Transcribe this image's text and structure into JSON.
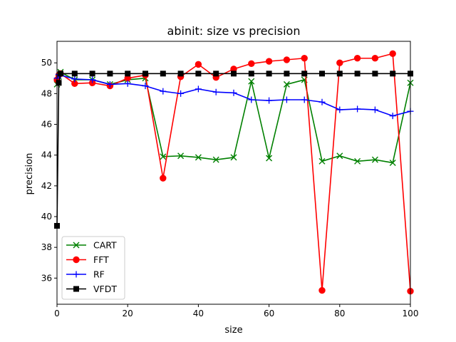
{
  "chart_data": {
    "type": "line",
    "title": "abinit: size vs precision",
    "xlabel": "size",
    "ylabel": "precision",
    "xlim": [
      0,
      100
    ],
    "ylim": [
      34.3,
      51.4
    ],
    "xticks": [
      0,
      20,
      40,
      60,
      80,
      100
    ],
    "yticks": [
      36,
      38,
      40,
      42,
      44,
      46,
      48,
      50
    ],
    "grid": false,
    "legend_position": "lower-left",
    "series": [
      {
        "name": "CART",
        "color": "#008000",
        "marker": "x",
        "x": [
          0,
          0.5,
          1,
          5,
          10,
          15,
          20,
          25,
          30,
          35,
          40,
          45,
          50,
          55,
          60,
          65,
          70,
          75,
          80,
          85,
          90,
          95,
          100
        ],
        "y": [
          48.6,
          49.1,
          49.4,
          48.9,
          48.9,
          48.6,
          48.9,
          49.0,
          43.9,
          43.95,
          43.85,
          43.7,
          43.85,
          48.8,
          43.8,
          48.6,
          48.9,
          43.6,
          43.95,
          43.6,
          43.7,
          43.5,
          48.7
        ]
      },
      {
        "name": "FFT",
        "color": "#ff0000",
        "marker": "o",
        "x": [
          0,
          0.5,
          1,
          5,
          10,
          15,
          20,
          25,
          30,
          35,
          40,
          45,
          50,
          55,
          60,
          65,
          70,
          75,
          80,
          85,
          90,
          95,
          100
        ],
        "y": [
          48.9,
          49.2,
          49.3,
          48.65,
          48.7,
          48.5,
          49.0,
          49.2,
          42.5,
          49.1,
          49.9,
          49.05,
          49.6,
          49.95,
          50.1,
          50.2,
          50.3,
          35.2,
          50.0,
          50.3,
          50.3,
          50.6,
          35.15
        ]
      },
      {
        "name": "RF",
        "color": "#0000ff",
        "marker": "+",
        "x": [
          0,
          0.5,
          1,
          5,
          10,
          15,
          20,
          25,
          30,
          35,
          40,
          45,
          50,
          55,
          60,
          65,
          70,
          75,
          80,
          85,
          90,
          95,
          100
        ],
        "y": [
          49.0,
          49.25,
          49.2,
          48.95,
          48.9,
          48.6,
          48.65,
          48.5,
          48.15,
          48.0,
          48.3,
          48.1,
          48.05,
          47.6,
          47.55,
          47.6,
          47.6,
          47.45,
          46.95,
          47.0,
          46.95,
          46.55,
          46.85
        ]
      },
      {
        "name": "VFDT",
        "color": "#000000",
        "marker": "s",
        "x": [
          0,
          0.5,
          1,
          5,
          10,
          15,
          20,
          25,
          30,
          35,
          40,
          45,
          50,
          55,
          60,
          65,
          70,
          75,
          80,
          85,
          90,
          95,
          100
        ],
        "y": [
          39.4,
          48.7,
          49.3,
          49.3,
          49.3,
          49.3,
          49.3,
          49.3,
          49.3,
          49.3,
          49.3,
          49.3,
          49.3,
          49.3,
          49.3,
          49.3,
          49.3,
          49.3,
          49.3,
          49.3,
          49.3,
          49.3,
          49.3
        ]
      }
    ]
  }
}
